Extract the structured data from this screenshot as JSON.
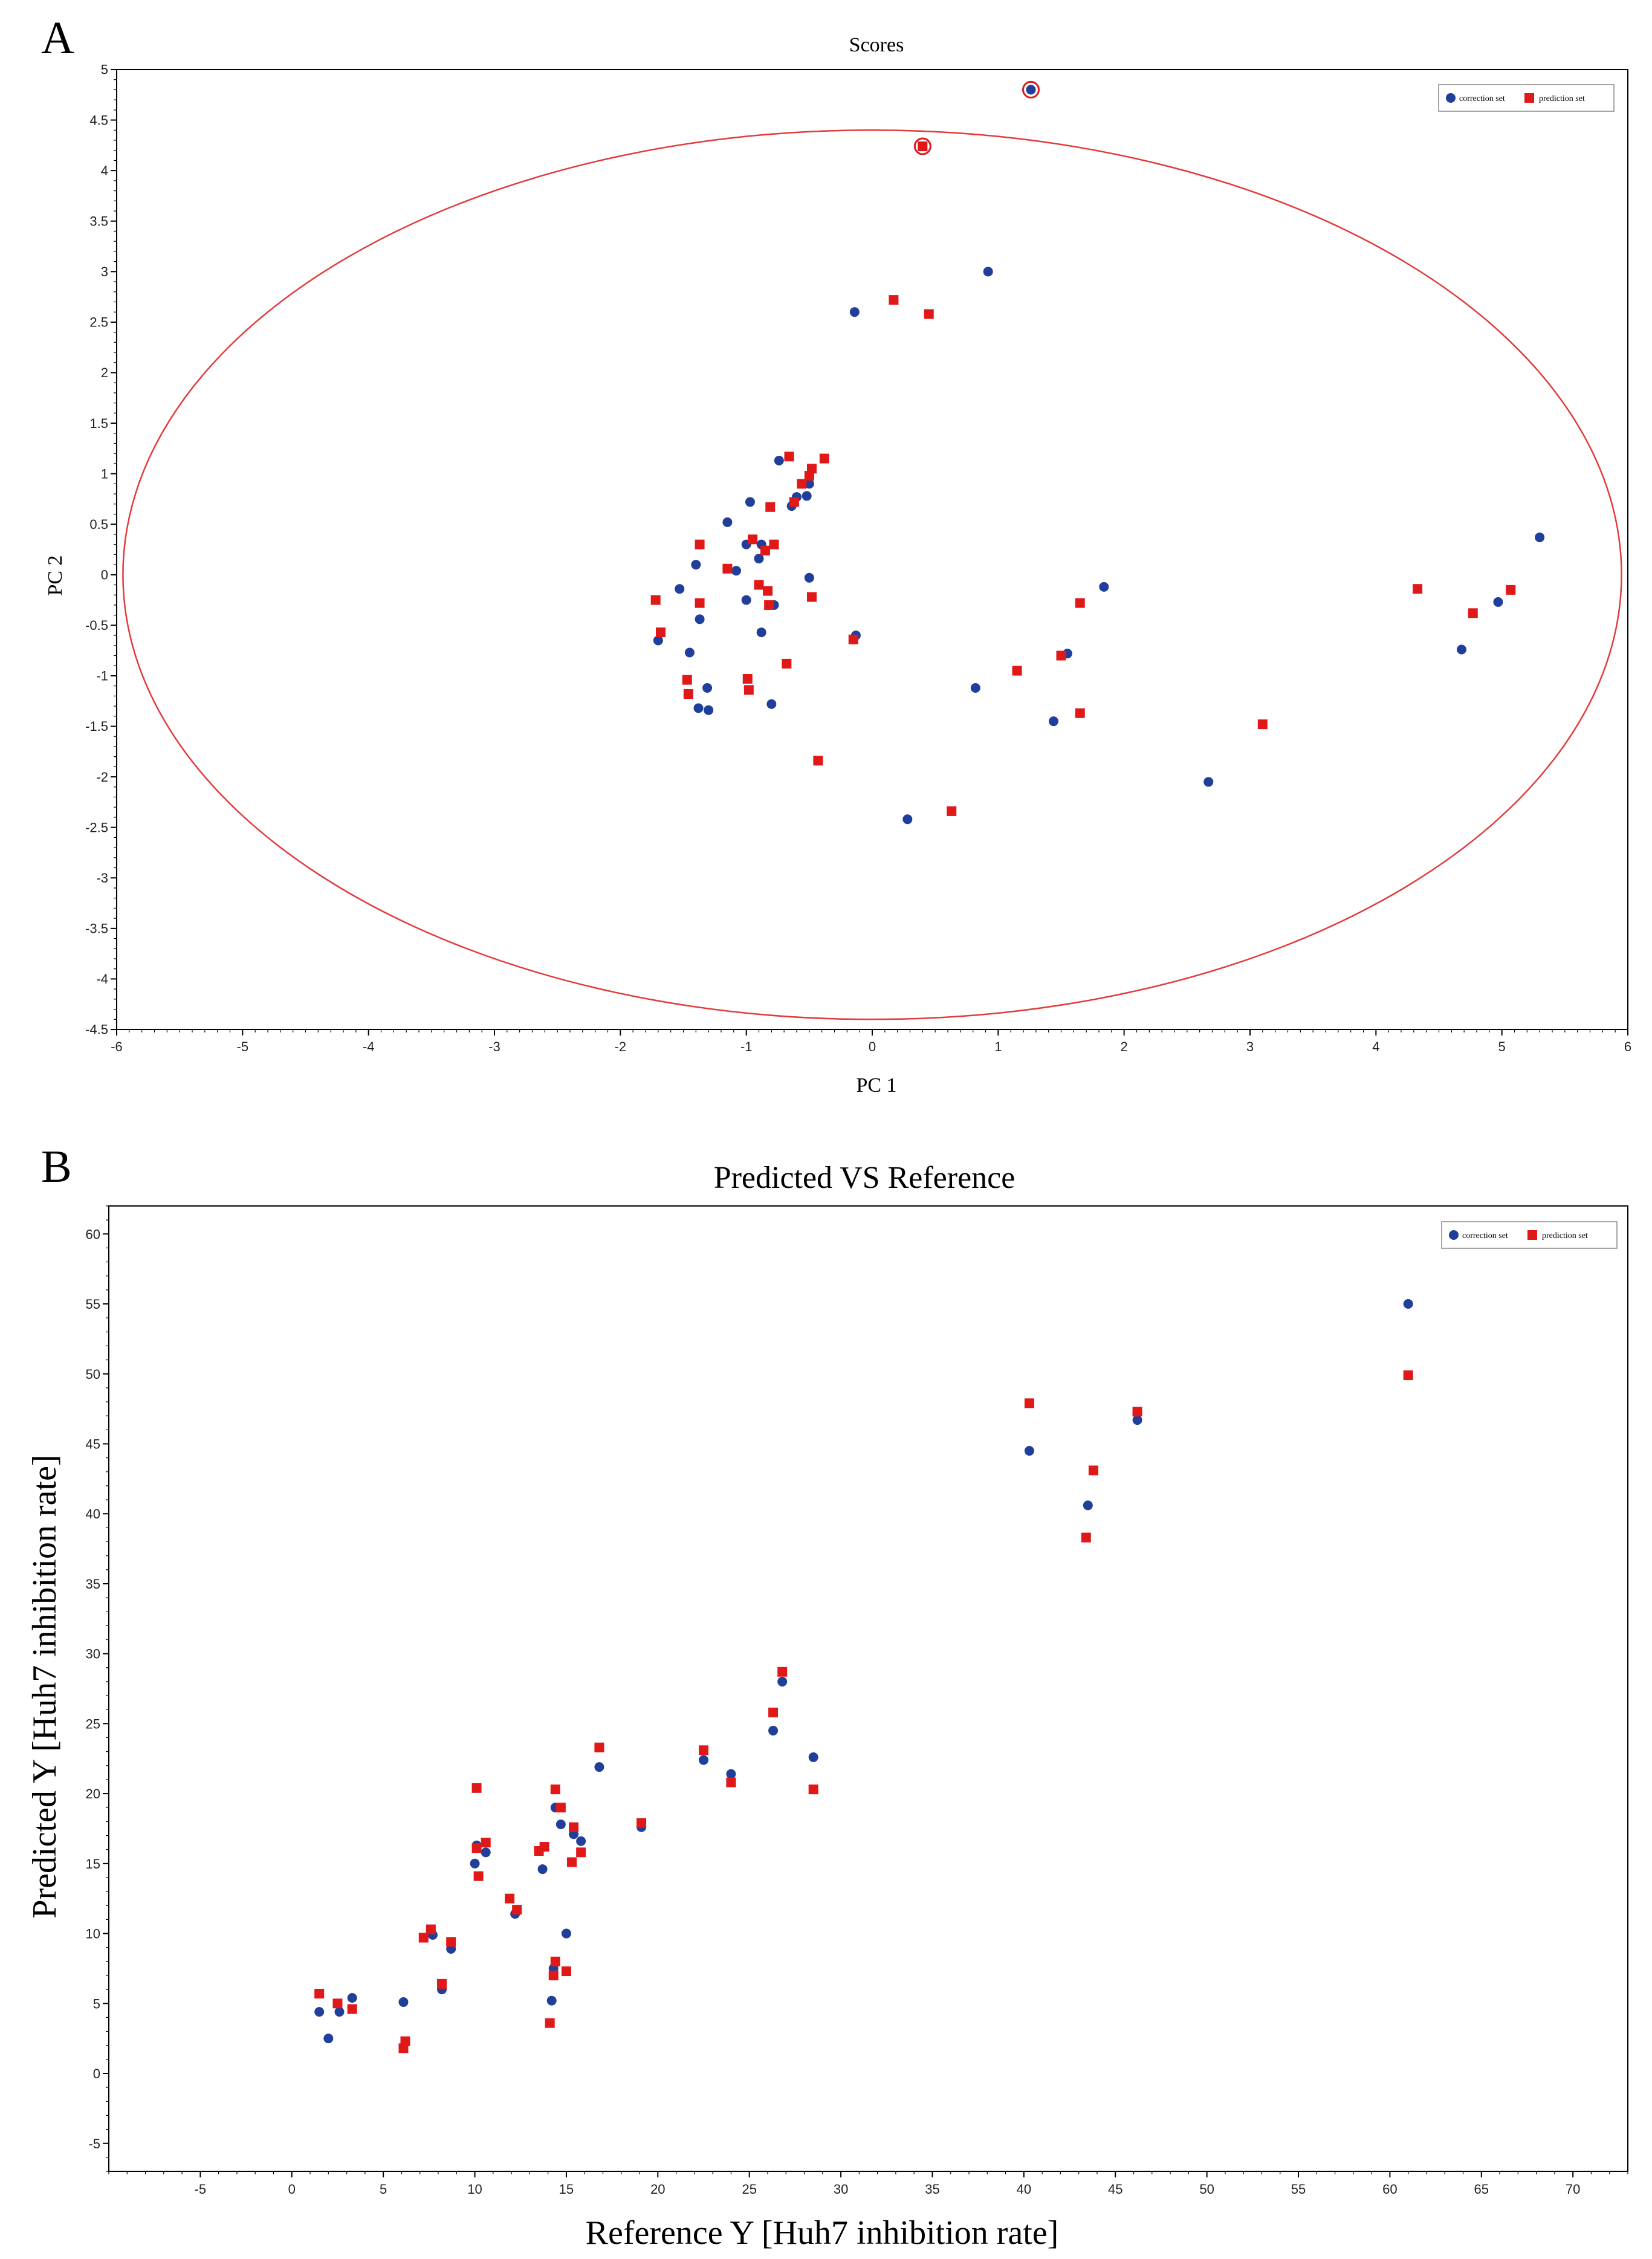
{
  "colors": {
    "calibration": "#1f3f9a",
    "prediction": "#e01818",
    "ellipse": "#e43a3a"
  },
  "chart_data": [
    {
      "panel": "A",
      "type": "scatter",
      "title": "Scores",
      "xlabel": "PC 1",
      "ylabel": "PC 2",
      "xlim": [
        -6,
        6
      ],
      "ylim": [
        -4.5,
        5
      ],
      "xticks": [
        "-6",
        "-5",
        "-4",
        "-3",
        "-2",
        "-1",
        "0",
        "1",
        "2",
        "3",
        "4",
        "5",
        "6"
      ],
      "yticks": [
        "5",
        "4.5",
        "4",
        "3.5",
        "3",
        "2.5",
        "2",
        "1.5",
        "1",
        "0.5",
        "0",
        "-0.5",
        "-1",
        "-1.5",
        "-2",
        "-2.5",
        "-3",
        "-3.5",
        "-4",
        "-4.5"
      ],
      "legend": [
        "correction set",
        "prediction set"
      ],
      "ellipse": {
        "center": [
          0,
          0
        ],
        "radius_x": 5.95,
        "radius_y": 4.4
      },
      "series": [
        {
          "name": "correction set",
          "points": [
            [
              -1.7,
              -0.65
            ],
            [
              -1.53,
              -0.14
            ],
            [
              -1.45,
              -0.77
            ],
            [
              -1.4,
              0.1
            ],
            [
              -1.38,
              -1.32
            ],
            [
              -1.37,
              -0.44
            ],
            [
              -1.31,
              -1.12
            ],
            [
              -1.3,
              -1.34
            ],
            [
              -1.15,
              0.52
            ],
            [
              -1.08,
              0.04
            ],
            [
              -1.0,
              0.3
            ],
            [
              -1.0,
              -0.25
            ],
            [
              -0.97,
              0.72
            ],
            [
              -0.9,
              0.16
            ],
            [
              -0.88,
              0.3
            ],
            [
              -0.88,
              -0.57
            ],
            [
              -0.8,
              -1.28
            ],
            [
              -0.78,
              -0.3
            ],
            [
              -0.74,
              1.13
            ],
            [
              -0.64,
              0.68
            ],
            [
              -0.6,
              0.77
            ],
            [
              -0.52,
              0.78
            ],
            [
              -0.5,
              0.9
            ],
            [
              -0.5,
              -0.03
            ],
            [
              -0.13,
              -0.6
            ],
            [
              -0.14,
              2.6
            ],
            [
              0.28,
              -2.42
            ],
            [
              0.92,
              3.0
            ],
            [
              0.82,
              -1.12
            ],
            [
              1.44,
              -1.45
            ],
            [
              1.55,
              -0.78
            ],
            [
              1.84,
              -0.12
            ],
            [
              2.67,
              -2.05
            ],
            [
              4.68,
              -0.74
            ],
            [
              4.97,
              -0.27
            ],
            [
              5.3,
              0.37
            ],
            [
              1.26,
              4.8
            ]
          ]
        },
        {
          "name": "prediction set",
          "points": [
            [
              -1.72,
              -0.25
            ],
            [
              -1.68,
              -0.57
            ],
            [
              -1.47,
              -1.04
            ],
            [
              -1.46,
              -1.18
            ],
            [
              -1.37,
              0.3
            ],
            [
              -1.37,
              -0.28
            ],
            [
              -1.15,
              0.06
            ],
            [
              -0.99,
              -1.03
            ],
            [
              -0.98,
              -1.14
            ],
            [
              -0.95,
              0.35
            ],
            [
              -0.9,
              -0.1
            ],
            [
              -0.85,
              0.24
            ],
            [
              -0.83,
              -0.16
            ],
            [
              -0.82,
              -0.3
            ],
            [
              -0.81,
              0.67
            ],
            [
              -0.78,
              0.3
            ],
            [
              -0.68,
              -0.88
            ],
            [
              -0.66,
              1.17
            ],
            [
              -0.62,
              0.72
            ],
            [
              -0.56,
              0.9
            ],
            [
              -0.5,
              0.98
            ],
            [
              -0.48,
              1.05
            ],
            [
              -0.48,
              -0.22
            ],
            [
              -0.43,
              -1.84
            ],
            [
              -0.38,
              1.15
            ],
            [
              -0.15,
              -0.64
            ],
            [
              0.17,
              2.72
            ],
            [
              0.45,
              2.58
            ],
            [
              0.63,
              -2.34
            ],
            [
              1.15,
              -0.95
            ],
            [
              1.5,
              -0.8
            ],
            [
              1.65,
              -0.28
            ],
            [
              1.65,
              -1.37
            ],
            [
              3.1,
              -1.48
            ],
            [
              4.33,
              -0.14
            ],
            [
              4.77,
              -0.38
            ],
            [
              5.07,
              -0.15
            ],
            [
              0.4,
              4.24
            ]
          ]
        }
      ]
    },
    {
      "panel": "B",
      "type": "scatter",
      "title": "Predicted  VS  Reference",
      "xlabel": "Reference Y [Huh7 inhibition rate]",
      "ylabel": "Predicted Y [Huh7 inhibition rate]",
      "xlim": [
        -10,
        73
      ],
      "ylim": [
        -7,
        62
      ],
      "xticks": [
        "-5",
        "0",
        "5",
        "10",
        "15",
        "20",
        "25",
        "30",
        "35",
        "40",
        "45",
        "50",
        "55",
        "60",
        "65",
        "70"
      ],
      "yticks": [
        "60",
        "55",
        "50",
        "45",
        "40",
        "35",
        "30",
        "25",
        "20",
        "15",
        "10",
        "5",
        "0",
        "-5"
      ],
      "legend": [
        "correction set",
        "prediction set"
      ],
      "series": [
        {
          "name": "correction set",
          "points": [
            [
              1.5,
              4.4
            ],
            [
              2.0,
              2.5
            ],
            [
              2.6,
              4.4
            ],
            [
              3.3,
              5.4
            ],
            [
              6.1,
              5.1
            ],
            [
              7.7,
              9.9
            ],
            [
              8.2,
              6.0
            ],
            [
              8.7,
              8.9
            ],
            [
              10.0,
              15.0
            ],
            [
              10.1,
              16.3
            ],
            [
              10.6,
              15.8
            ],
            [
              12.2,
              11.4
            ],
            [
              13.7,
              14.6
            ],
            [
              14.2,
              5.2
            ],
            [
              14.3,
              7.5
            ],
            [
              14.4,
              19.0
            ],
            [
              14.7,
              17.8
            ],
            [
              15.0,
              10.0
            ],
            [
              15.4,
              17.1
            ],
            [
              15.8,
              16.6
            ],
            [
              16.8,
              21.9
            ],
            [
              19.1,
              17.6
            ],
            [
              22.5,
              22.4
            ],
            [
              24.0,
              21.4
            ],
            [
              26.3,
              24.5
            ],
            [
              26.8,
              28.0
            ],
            [
              28.5,
              22.6
            ],
            [
              40.3,
              44.5
            ],
            [
              43.5,
              40.6
            ],
            [
              46.2,
              46.7
            ],
            [
              61.0,
              55.0
            ]
          ]
        },
        {
          "name": "prediction set",
          "points": [
            [
              1.5,
              5.7
            ],
            [
              2.5,
              5.0
            ],
            [
              3.3,
              4.6
            ],
            [
              6.1,
              1.8
            ],
            [
              6.2,
              2.3
            ],
            [
              7.2,
              9.7
            ],
            [
              7.6,
              10.3
            ],
            [
              8.2,
              6.4
            ],
            [
              8.7,
              9.4
            ],
            [
              10.1,
              20.4
            ],
            [
              10.1,
              16.1
            ],
            [
              10.2,
              14.1
            ],
            [
              10.6,
              16.5
            ],
            [
              11.9,
              12.5
            ],
            [
              12.3,
              11.7
            ],
            [
              13.5,
              15.9
            ],
            [
              13.8,
              16.2
            ],
            [
              14.1,
              3.6
            ],
            [
              14.3,
              7.0
            ],
            [
              14.4,
              8.0
            ],
            [
              14.4,
              20.3
            ],
            [
              14.7,
              19.0
            ],
            [
              15.0,
              7.3
            ],
            [
              15.3,
              15.1
            ],
            [
              15.4,
              17.6
            ],
            [
              15.8,
              15.8
            ],
            [
              16.8,
              23.3
            ],
            [
              19.1,
              17.9
            ],
            [
              22.5,
              23.1
            ],
            [
              24.0,
              20.8
            ],
            [
              26.3,
              25.8
            ],
            [
              26.8,
              28.7
            ],
            [
              28.5,
              20.3
            ],
            [
              40.3,
              47.9
            ],
            [
              43.4,
              38.3
            ],
            [
              43.8,
              43.1
            ],
            [
              46.2,
              47.3
            ],
            [
              61.0,
              49.9
            ]
          ]
        }
      ]
    }
  ],
  "panels": [
    {
      "label": "A"
    },
    {
      "label": "B"
    }
  ]
}
